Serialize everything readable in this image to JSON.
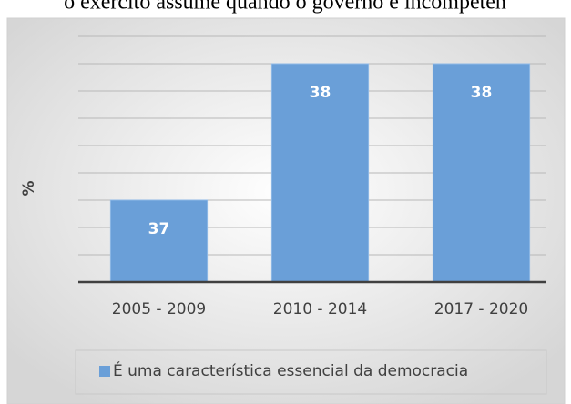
{
  "chart_data": {
    "type": "bar",
    "title": "o exército assume quando o governo é incompeten",
    "ylabel": "%",
    "categories": [
      "2005 - 2009",
      "2010 - 2014",
      "2017 - 2020"
    ],
    "series": [
      {
        "name": "É uma característica essencial da democracia",
        "color": "#6a9fd8",
        "values": [
          37,
          38,
          38
        ]
      }
    ],
    "ylim": [
      36.4,
      38.2
    ],
    "yticks": [
      36.4,
      36.6,
      36.8,
      37.0,
      37.2,
      37.4,
      37.6,
      37.8,
      38.0,
      38.2
    ],
    "grid": true,
    "legend": "bottom"
  }
}
